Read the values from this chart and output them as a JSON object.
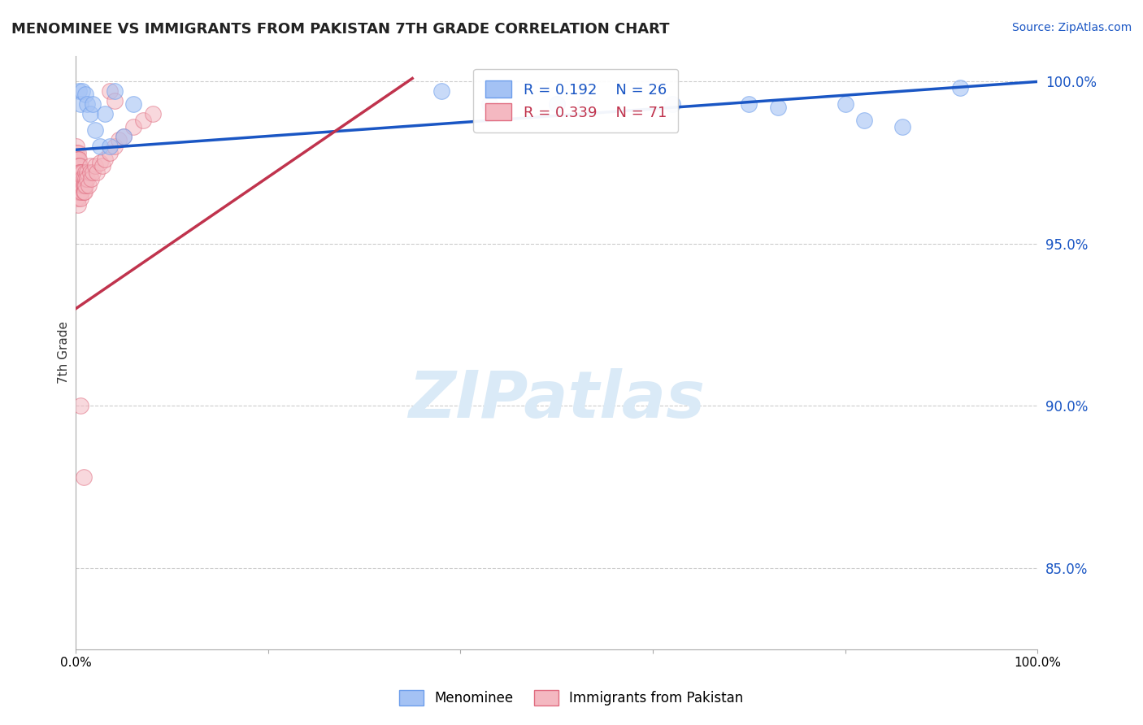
{
  "title": "MENOMINEE VS IMMIGRANTS FROM PAKISTAN 7TH GRADE CORRELATION CHART",
  "source": "Source: ZipAtlas.com",
  "ylabel": "7th Grade",
  "ytick_labels": [
    "85.0%",
    "90.0%",
    "95.0%",
    "100.0%"
  ],
  "ytick_values": [
    0.85,
    0.9,
    0.95,
    1.0
  ],
  "xlim": [
    0.0,
    1.0
  ],
  "ylim": [
    0.825,
    1.008
  ],
  "blue_R": 0.192,
  "blue_N": 26,
  "pink_R": 0.339,
  "pink_N": 71,
  "blue_label": "Menominee",
  "pink_label": "Immigrants from Pakistan",
  "blue_color": "#a4c2f4",
  "pink_color": "#f4b8c1",
  "blue_edge_color": "#6d9eeb",
  "pink_edge_color": "#e06c80",
  "blue_trend_color": "#1a56c4",
  "pink_trend_color": "#c0334d",
  "watermark": "ZIPatlas",
  "watermark_color": "#daeaf7",
  "blue_trend_x0": 0.0,
  "blue_trend_y0": 0.979,
  "blue_trend_x1": 1.0,
  "blue_trend_y1": 1.0,
  "pink_trend_x0": 0.0,
  "pink_trend_y0": 0.93,
  "pink_trend_x1": 0.35,
  "pink_trend_y1": 1.001,
  "blue_x": [
    0.003,
    0.005,
    0.007,
    0.01,
    0.012,
    0.015,
    0.018,
    0.02,
    0.025,
    0.03,
    0.035,
    0.04,
    0.05,
    0.06,
    0.38,
    0.43,
    0.5,
    0.53,
    0.62,
    0.7,
    0.73,
    0.8,
    0.82,
    0.86,
    0.92,
    0.5
  ],
  "blue_y": [
    0.997,
    0.993,
    0.997,
    0.996,
    0.993,
    0.99,
    0.993,
    0.985,
    0.98,
    0.99,
    0.98,
    0.997,
    0.983,
    0.993,
    0.997,
    0.993,
    0.993,
    0.993,
    0.993,
    0.993,
    0.992,
    0.993,
    0.988,
    0.986,
    0.998,
    0.993
  ],
  "pink_x": [
    0.001,
    0.001,
    0.001,
    0.001,
    0.001,
    0.001,
    0.001,
    0.001,
    0.001,
    0.002,
    0.002,
    0.002,
    0.002,
    0.002,
    0.002,
    0.002,
    0.002,
    0.002,
    0.003,
    0.003,
    0.003,
    0.003,
    0.003,
    0.003,
    0.004,
    0.004,
    0.004,
    0.004,
    0.004,
    0.005,
    0.005,
    0.005,
    0.005,
    0.005,
    0.006,
    0.006,
    0.006,
    0.007,
    0.007,
    0.007,
    0.008,
    0.008,
    0.008,
    0.009,
    0.009,
    0.01,
    0.01,
    0.01,
    0.012,
    0.012,
    0.013,
    0.015,
    0.015,
    0.016,
    0.018,
    0.02,
    0.022,
    0.025,
    0.028,
    0.03,
    0.035,
    0.04,
    0.045,
    0.05,
    0.06,
    0.07,
    0.08,
    0.035,
    0.04,
    0.005,
    0.008
  ],
  "pink_y": [
    0.98,
    0.978,
    0.976,
    0.974,
    0.972,
    0.97,
    0.968,
    0.966,
    0.964,
    0.978,
    0.976,
    0.974,
    0.972,
    0.97,
    0.968,
    0.966,
    0.964,
    0.962,
    0.976,
    0.974,
    0.972,
    0.97,
    0.968,
    0.966,
    0.974,
    0.972,
    0.97,
    0.968,
    0.966,
    0.972,
    0.97,
    0.968,
    0.966,
    0.964,
    0.97,
    0.968,
    0.966,
    0.972,
    0.97,
    0.968,
    0.97,
    0.968,
    0.966,
    0.968,
    0.966,
    0.972,
    0.97,
    0.968,
    0.972,
    0.97,
    0.968,
    0.974,
    0.972,
    0.97,
    0.972,
    0.974,
    0.972,
    0.975,
    0.974,
    0.976,
    0.978,
    0.98,
    0.982,
    0.983,
    0.986,
    0.988,
    0.99,
    0.997,
    0.994,
    0.9,
    0.878
  ]
}
